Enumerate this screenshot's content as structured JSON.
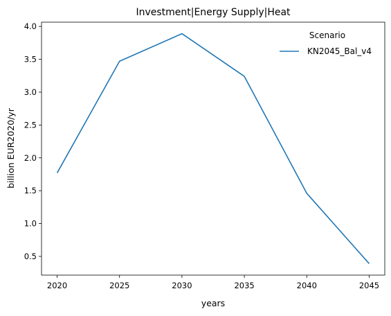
{
  "chart_data": {
    "type": "line",
    "title": "Investment|Energy Supply|Heat",
    "xlabel": "years",
    "ylabel": "billion EUR2020/yr",
    "x": [
      2020,
      2025,
      2030,
      2035,
      2040,
      2045
    ],
    "series": [
      {
        "name": "KN2045_Bal_v4",
        "color": "#1f77b4",
        "values": [
          1.77,
          3.47,
          3.89,
          3.24,
          1.46,
          0.39
        ]
      }
    ],
    "xticks": [
      2020,
      2025,
      2030,
      2035,
      2040,
      2045
    ],
    "xtick_labels": [
      "2020",
      "2025",
      "2030",
      "2035",
      "2040",
      "2045"
    ],
    "yticks": [
      0.5,
      1.0,
      1.5,
      2.0,
      2.5,
      3.0,
      3.5,
      4.0
    ],
    "ytick_labels": [
      "0.5",
      "1.0",
      "1.5",
      "2.0",
      "2.5",
      "3.0",
      "3.5",
      "4.0"
    ],
    "xlim": [
      2018.75,
      2046.25
    ],
    "ylim": [
      0.215,
      4.065
    ],
    "grid": false,
    "legend": {
      "title": "Scenario",
      "placement": "top-right"
    }
  }
}
